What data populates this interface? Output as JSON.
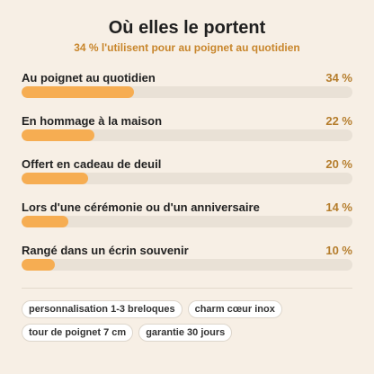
{
  "chart_data": {
    "type": "bar",
    "orientation": "horizontal",
    "title": "Où elles le portent",
    "subtitle": "34 % l'utilisent pour au poignet au quotidien",
    "categories": [
      "Au poignet au quotidien",
      "En hommage à la maison",
      "Offert en cadeau de deuil",
      "Lors d'une cérémonie ou d'un anniversaire",
      "Rangé dans un écrin souvenir"
    ],
    "values": [
      34,
      22,
      20,
      14,
      10
    ],
    "value_labels": [
      "34 %",
      "22 %",
      "20 %",
      "14 %",
      "10 %"
    ],
    "xlim": [
      0,
      100
    ],
    "color": "#f6ad52"
  },
  "tags": [
    "personnalisation 1-3 breloques",
    "charm cœur inox",
    "tour de poignet 7 cm",
    "garantie 30 jours"
  ]
}
